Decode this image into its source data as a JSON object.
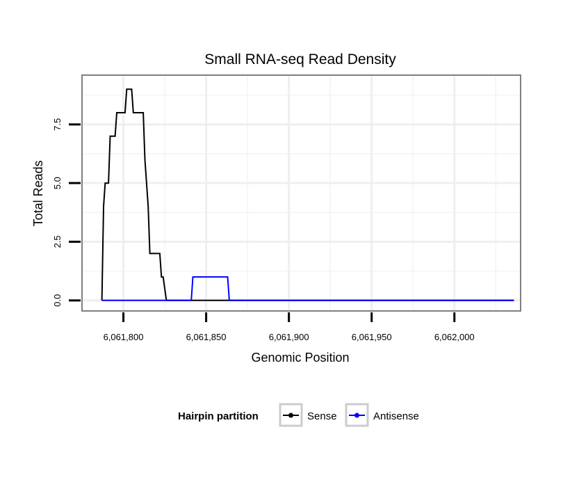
{
  "chart_data": {
    "type": "line",
    "title": "Small RNA-seq Read Density",
    "xlabel": "Genomic Position",
    "ylabel": "Total Reads",
    "xlim": [
      6061775,
      6062040
    ],
    "ylim": [
      -0.45,
      9.6
    ],
    "x_ticks": [
      6061800,
      6061850,
      6061900,
      6061950,
      6062000
    ],
    "x_tick_labels": [
      "6,061,800",
      "6,061,850",
      "6,061,900",
      "6,061,950",
      "6,062,000"
    ],
    "y_ticks": [
      0,
      2.5,
      5,
      7.5
    ],
    "y_tick_labels": [
      "0.0",
      "2.5",
      "5.0",
      "7.5"
    ],
    "grid": true,
    "legend": {
      "title": "Hairpin partition",
      "position": "bottom"
    },
    "series": [
      {
        "name": "Sense",
        "color": "#000000",
        "x": [
          6061787,
          6061788,
          6061789,
          6061791,
          6061792,
          6061795,
          6061796,
          6061798,
          6061799,
          6061801,
          6061802,
          6061805,
          6061806,
          6061812,
          6061813,
          6061815,
          6061816,
          6061822,
          6061823,
          6061824,
          6061826,
          6061827,
          6062036
        ],
        "y": [
          0,
          4,
          5,
          5,
          7,
          7,
          8,
          8,
          8,
          8,
          9,
          9,
          8,
          8,
          6,
          4,
          2,
          2,
          1,
          1,
          0,
          0,
          0
        ]
      },
      {
        "name": "Antisense",
        "color": "#0000ff",
        "x": [
          6061787,
          6061841,
          6061842,
          6061863,
          6061864,
          6062036
        ],
        "y": [
          0,
          0,
          1,
          1,
          0,
          0
        ]
      }
    ]
  }
}
